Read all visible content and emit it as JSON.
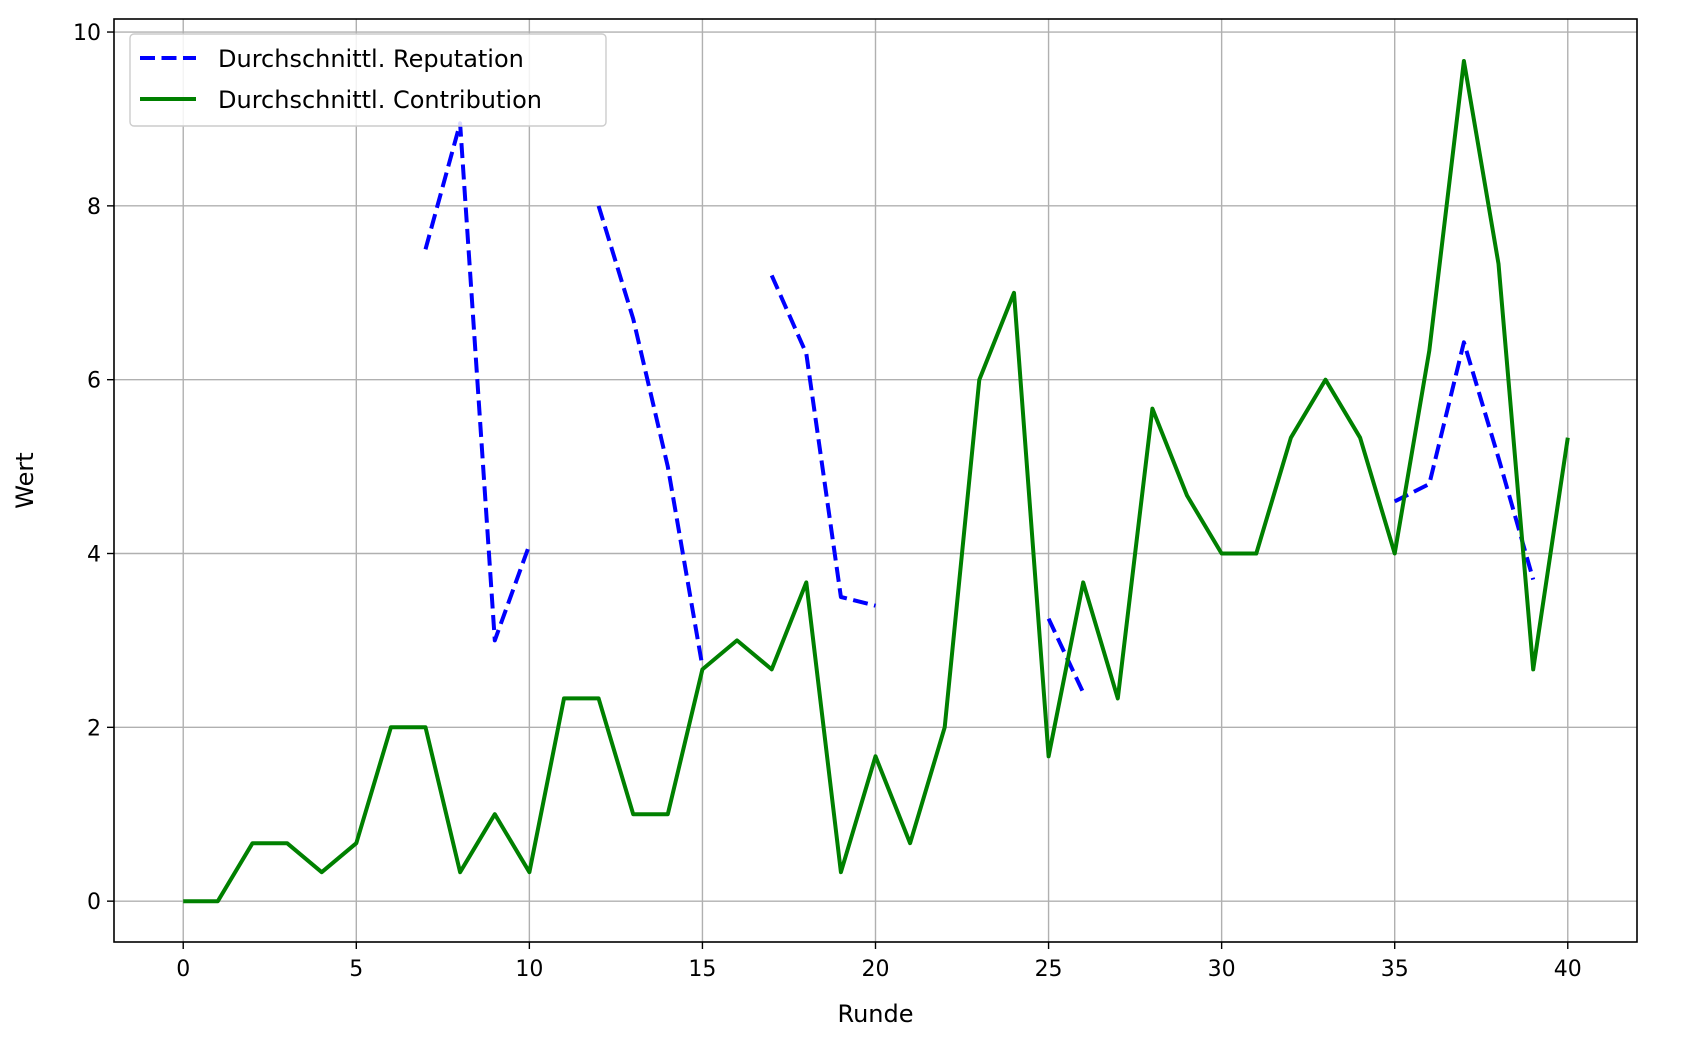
{
  "chart_data": {
    "type": "line",
    "title": "",
    "xlabel": "Runde",
    "ylabel": "Wert",
    "xlim": [
      -2,
      42
    ],
    "ylim": [
      -0.47,
      10.15
    ],
    "xticks": [
      0,
      5,
      10,
      15,
      20,
      25,
      30,
      35,
      40
    ],
    "yticks": [
      0,
      2,
      4,
      6,
      8,
      10
    ],
    "grid": true,
    "legend_position": "top-left",
    "x": [
      0,
      1,
      2,
      3,
      4,
      5,
      6,
      7,
      8,
      9,
      10,
      11,
      12,
      13,
      14,
      15,
      16,
      17,
      18,
      19,
      20,
      21,
      22,
      23,
      24,
      25,
      26,
      27,
      28,
      29,
      30,
      31,
      32,
      33,
      34,
      35,
      36,
      37,
      38,
      39,
      40
    ],
    "series": [
      {
        "name": "Durchschnittl. Reputation",
        "color": "#0000ff",
        "style": "dashed",
        "values": [
          null,
          null,
          null,
          null,
          null,
          null,
          null,
          7.5,
          8.95,
          3.0,
          4.1,
          null,
          8.0,
          6.7,
          5.0,
          2.7,
          null,
          7.2,
          6.3,
          3.5,
          3.4,
          null,
          null,
          null,
          null,
          3.25,
          2.4,
          null,
          null,
          null,
          null,
          null,
          null,
          null,
          null,
          4.6,
          4.8,
          6.43,
          5.1,
          3.7,
          null
        ]
      },
      {
        "name": "Durchschnittl. Contribution",
        "color": "#008000",
        "style": "solid",
        "values": [
          0,
          0,
          0.667,
          0.667,
          0.333,
          0.667,
          2.0,
          2.0,
          0.333,
          1.0,
          0.333,
          2.333,
          2.333,
          1.0,
          1.0,
          2.667,
          3.0,
          2.667,
          3.667,
          0.333,
          1.667,
          0.667,
          2.0,
          6.0,
          7.0,
          1.667,
          3.667,
          2.333,
          5.667,
          4.667,
          4.0,
          4.0,
          5.333,
          6.0,
          5.333,
          4.0,
          6.333,
          9.667,
          7.333,
          2.667,
          5.333
        ]
      }
    ]
  }
}
